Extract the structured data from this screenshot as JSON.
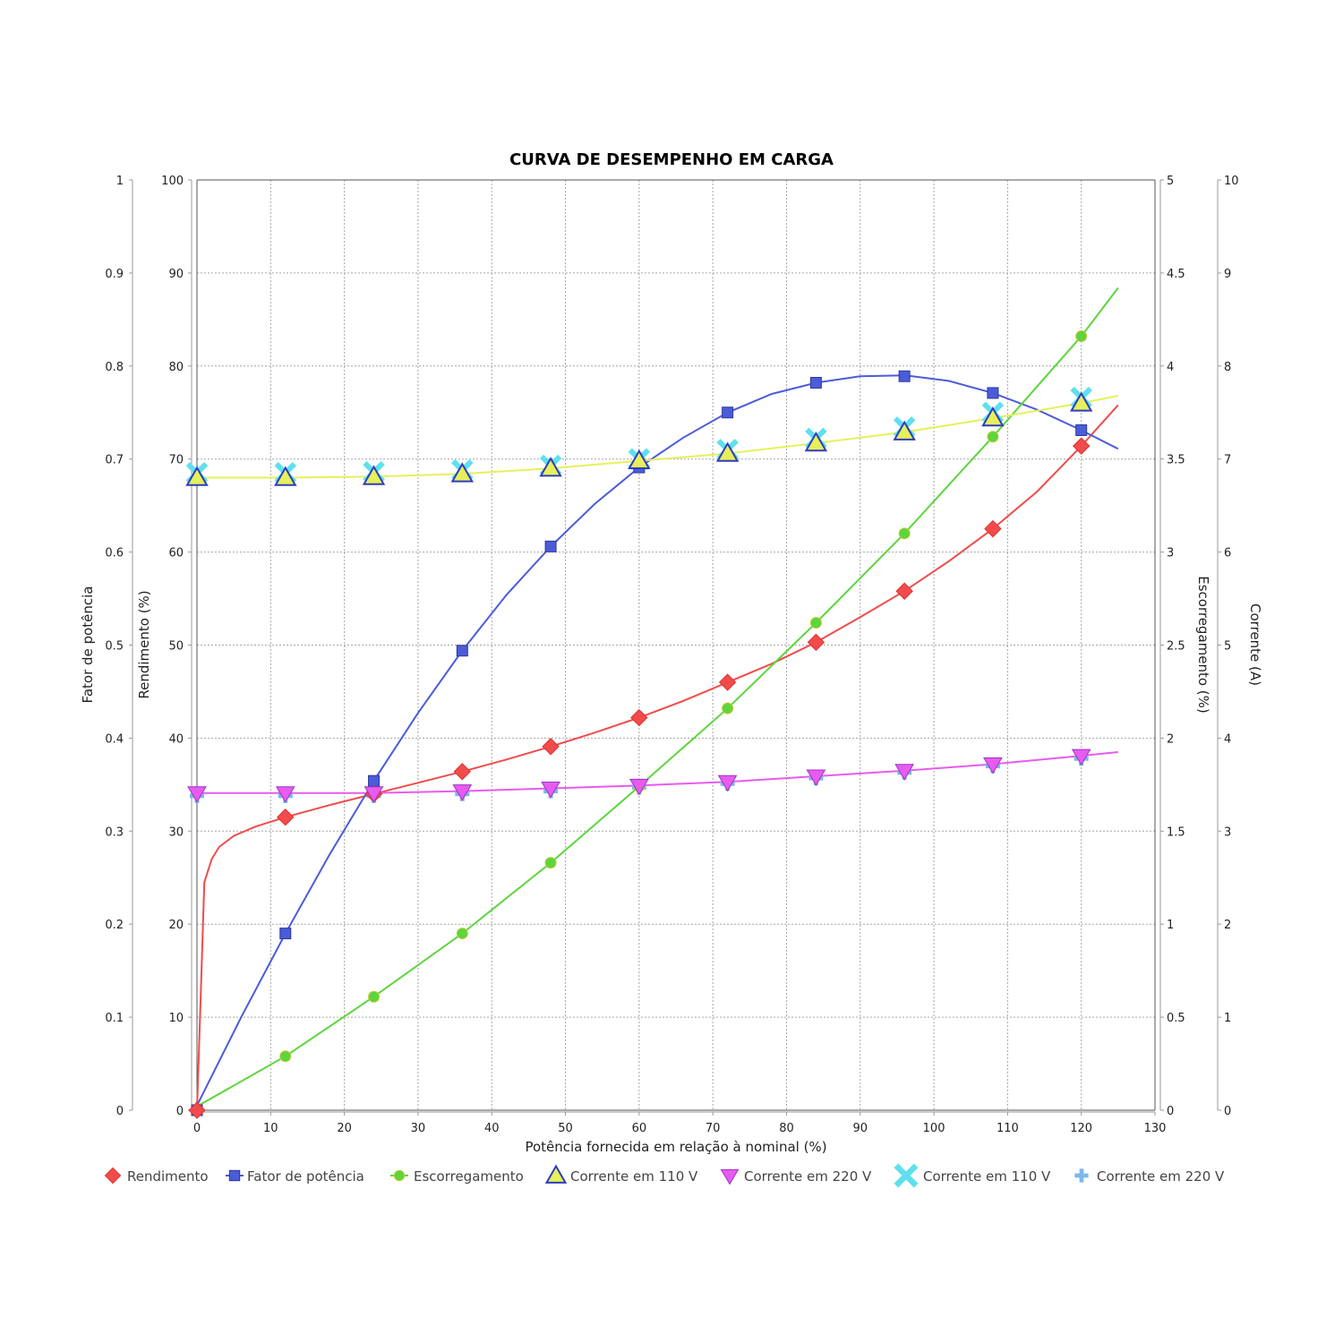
{
  "chart_data": {
    "type": "scatter",
    "title": "CURVA DE DESEMPENHO EM CARGA",
    "xlabel": "Potência fornecida em relação à nominal (%)",
    "xlim": [
      0,
      130
    ],
    "xticks": [
      0,
      10,
      20,
      30,
      40,
      50,
      60,
      70,
      80,
      90,
      100,
      110,
      120,
      130
    ],
    "grid": true,
    "axes": {
      "fp": {
        "label": "Fator de potência",
        "lim": [
          0,
          1
        ],
        "ticks": [
          "0",
          "0.1",
          "0.2",
          "0.3",
          "0.4",
          "0.5",
          "0.6",
          "0.7",
          "0.8",
          "0.9",
          "1"
        ]
      },
      "rend": {
        "label": "Rendimento (%)",
        "lim": [
          0,
          100
        ],
        "ticks": [
          "0",
          "10",
          "20",
          "30",
          "40",
          "50",
          "60",
          "70",
          "80",
          "90",
          "100"
        ]
      },
      "esc": {
        "label": "Escorregamento (%)",
        "lim": [
          0,
          5
        ],
        "ticks": [
          "0",
          "0.5",
          "1",
          "1.5",
          "2",
          "2.5",
          "3",
          "3.5",
          "4",
          "4.5",
          "5"
        ]
      },
      "cor": {
        "label": "Corrente (A)",
        "lim": [
          0,
          10
        ],
        "ticks": [
          "0",
          "1",
          "2",
          "3",
          "4",
          "5",
          "6",
          "7",
          "8",
          "9",
          "10"
        ]
      }
    },
    "legend_position": "bottom",
    "series": [
      {
        "name": "Rendimento",
        "axis": "rend",
        "color": "#f24b4b",
        "marker": "diamond",
        "x": [
          0,
          12,
          24,
          36,
          48,
          60,
          72,
          84,
          96,
          108,
          120
        ],
        "values": [
          0,
          31.5,
          34,
          36.4,
          39.1,
          42.2,
          46,
          50.3,
          55.8,
          62.5,
          71.4
        ],
        "curve_x": [
          0,
          0.5,
          1,
          2,
          3,
          5,
          8,
          12,
          18,
          24,
          30,
          36,
          42,
          48,
          54,
          60,
          66,
          72,
          78,
          84,
          90,
          96,
          102,
          108,
          114,
          120,
          125
        ],
        "curve_y": [
          0,
          12,
          24.5,
          27,
          28.3,
          29.5,
          30.5,
          31.5,
          32.8,
          34,
          35.2,
          36.4,
          37.7,
          39.1,
          40.6,
          42.2,
          44,
          46,
          48,
          50.3,
          53,
          55.8,
          59,
          62.5,
          66.5,
          71.4,
          75.8
        ]
      },
      {
        "name": "Fator de potência",
        "axis": "fp",
        "color": "#4c5cd8",
        "marker": "square",
        "x": [
          0,
          12,
          24,
          36,
          48,
          60,
          72,
          84,
          96,
          108,
          120
        ],
        "values": [
          0,
          0.19,
          0.354,
          0.494,
          0.606,
          0.691,
          0.75,
          0.782,
          0.789,
          0.771,
          0.731
        ],
        "curve_x": [
          0,
          6,
          12,
          18,
          24,
          30,
          36,
          42,
          48,
          54,
          60,
          66,
          72,
          78,
          84,
          90,
          96,
          102,
          108,
          114,
          120,
          125
        ],
        "curve_y": [
          0.005,
          0.1,
          0.19,
          0.275,
          0.354,
          0.427,
          0.494,
          0.554,
          0.606,
          0.652,
          0.691,
          0.723,
          0.75,
          0.77,
          0.782,
          0.789,
          0.79,
          0.784,
          0.771,
          0.753,
          0.731,
          0.711
        ]
      },
      {
        "name": "Escorregamento",
        "axis": "esc",
        "color": "#5cd63c",
        "marker": "circle",
        "x": [
          12,
          24,
          36,
          48,
          60,
          72,
          84,
          96,
          108,
          120
        ],
        "values": [
          0.29,
          0.61,
          0.95,
          1.33,
          1.74,
          2.16,
          2.62,
          3.1,
          3.62,
          4.16
        ],
        "curve_x": [
          0,
          12,
          24,
          36,
          48,
          60,
          72,
          84,
          96,
          108,
          120,
          125
        ],
        "curve_y": [
          0.02,
          0.29,
          0.61,
          0.95,
          1.33,
          1.74,
          2.16,
          2.62,
          3.1,
          3.62,
          4.16,
          4.42
        ]
      },
      {
        "name": "Corrente em 110 V",
        "axis": "cor",
        "color": "#e6f05a",
        "marker": "triangle-up",
        "x": [
          0,
          12,
          24,
          36,
          48,
          60,
          72,
          84,
          96,
          108,
          120
        ],
        "values": [
          6.8,
          6.8,
          6.81,
          6.84,
          6.9,
          6.98,
          7.06,
          7.17,
          7.29,
          7.44,
          7.6
        ],
        "curve_x": [
          0,
          12,
          24,
          36,
          48,
          60,
          72,
          84,
          96,
          108,
          120,
          125
        ],
        "curve_y": [
          6.8,
          6.8,
          6.81,
          6.84,
          6.9,
          6.98,
          7.06,
          7.17,
          7.29,
          7.44,
          7.6,
          7.68
        ]
      },
      {
        "name": "Corrente em 220 V",
        "axis": "cor",
        "color": "#e95aef",
        "marker": "triangle-down",
        "x": [
          0,
          12,
          24,
          36,
          48,
          60,
          72,
          84,
          96,
          108,
          120
        ],
        "values": [
          3.41,
          3.41,
          3.41,
          3.43,
          3.46,
          3.49,
          3.53,
          3.59,
          3.65,
          3.72,
          3.81
        ],
        "curve_x": [
          0,
          12,
          24,
          36,
          48,
          60,
          72,
          84,
          96,
          108,
          120,
          125
        ],
        "curve_y": [
          3.41,
          3.41,
          3.41,
          3.43,
          3.46,
          3.49,
          3.53,
          3.59,
          3.65,
          3.72,
          3.81,
          3.85
        ]
      },
      {
        "name": "Corrente em 110 V",
        "axis": "cor",
        "color": "#5ee0ee",
        "marker": "x",
        "x": [
          0,
          12,
          24,
          36,
          48,
          60,
          72,
          84,
          96,
          108,
          120
        ],
        "values": [
          6.85,
          6.85,
          6.86,
          6.88,
          6.93,
          7.0,
          7.1,
          7.22,
          7.34,
          7.5,
          7.66
        ]
      },
      {
        "name": "Corrente em 220 V",
        "axis": "cor",
        "color": "#7cb8e8",
        "marker": "plus",
        "x": [
          0,
          12,
          24,
          36,
          48,
          60,
          72,
          84,
          96,
          108,
          120
        ],
        "values": [
          3.38,
          3.38,
          3.38,
          3.4,
          3.43,
          3.47,
          3.51,
          3.57,
          3.63,
          3.7,
          3.78
        ]
      }
    ]
  }
}
